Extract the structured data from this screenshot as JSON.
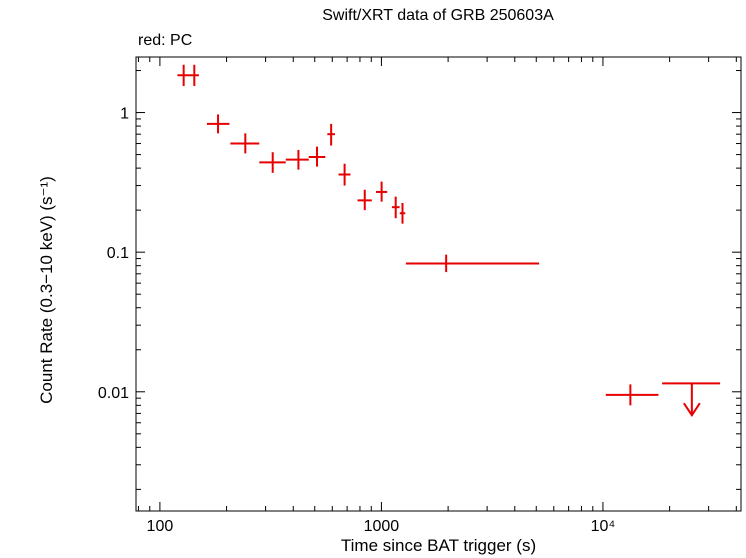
{
  "title": "Swift/XRT data of GRB 250603A",
  "subtitle": "red: PC",
  "colors": {
    "series": "#e60000",
    "axis": "#000000",
    "background": "#ffffff"
  },
  "chart_data": {
    "type": "scatter",
    "title": "Swift/XRT data of GRB 250603A",
    "xlabel": "Time since BAT trigger (s)",
    "ylabel": "Count Rate (0.3−10 keV) (s⁻¹)",
    "xscale": "log",
    "yscale": "log",
    "xlim": [
      78,
      42000
    ],
    "ylim": [
      0.0014,
      2.5
    ],
    "xticks": [
      {
        "value": 100,
        "label": "100"
      },
      {
        "value": 1000,
        "label": "1000"
      },
      {
        "value": 10000,
        "label": "10⁴"
      }
    ],
    "yticks": [
      {
        "value": 1,
        "label": "1"
      },
      {
        "value": 0.1,
        "label": "0.1"
      },
      {
        "value": 0.01,
        "label": "0.01"
      }
    ],
    "grid": false,
    "series": [
      {
        "name": "PC",
        "color": "#e60000",
        "points": [
          {
            "x": 128,
            "xlo": 120,
            "xhi": 136,
            "y": 1.85,
            "ylo": 1.55,
            "yhi": 2.2
          },
          {
            "x": 143,
            "xlo": 136,
            "xhi": 150,
            "y": 1.85,
            "ylo": 1.55,
            "yhi": 2.2
          },
          {
            "x": 183,
            "xlo": 163,
            "xhi": 206,
            "y": 0.83,
            "ylo": 0.71,
            "yhi": 0.97
          },
          {
            "x": 243,
            "xlo": 208,
            "xhi": 281,
            "y": 0.6,
            "ylo": 0.51,
            "yhi": 0.71
          },
          {
            "x": 323,
            "xlo": 281,
            "xhi": 370,
            "y": 0.44,
            "ylo": 0.37,
            "yhi": 0.52
          },
          {
            "x": 422,
            "xlo": 370,
            "xhi": 470,
            "y": 0.46,
            "ylo": 0.39,
            "yhi": 0.54
          },
          {
            "x": 512,
            "xlo": 470,
            "xhi": 558,
            "y": 0.48,
            "ylo": 0.41,
            "yhi": 0.57
          },
          {
            "x": 593,
            "xlo": 570,
            "xhi": 617,
            "y": 0.7,
            "ylo": 0.58,
            "yhi": 0.83
          },
          {
            "x": 682,
            "xlo": 640,
            "xhi": 725,
            "y": 0.36,
            "ylo": 0.3,
            "yhi": 0.43
          },
          {
            "x": 841,
            "xlo": 780,
            "xhi": 905,
            "y": 0.235,
            "ylo": 0.2,
            "yhi": 0.28
          },
          {
            "x": 1002,
            "xlo": 945,
            "xhi": 1062,
            "y": 0.27,
            "ylo": 0.23,
            "yhi": 0.32
          },
          {
            "x": 1160,
            "xlo": 1115,
            "xhi": 1208,
            "y": 0.21,
            "ylo": 0.175,
            "yhi": 0.25
          },
          {
            "x": 1245,
            "xlo": 1210,
            "xhi": 1281,
            "y": 0.19,
            "ylo": 0.16,
            "yhi": 0.225
          },
          {
            "x": 1960,
            "xlo": 1290,
            "xhi": 5150,
            "y": 0.083,
            "ylo": 0.072,
            "yhi": 0.096
          },
          {
            "x": 13300,
            "xlo": 10300,
            "xhi": 17800,
            "y": 0.0095,
            "ylo": 0.008,
            "yhi": 0.0113
          }
        ],
        "upper_limits": [
          {
            "x": 25200,
            "xlo": 18500,
            "xhi": 33800,
            "y": 0.0115,
            "arrow_to": 0.0068
          }
        ]
      }
    ]
  }
}
